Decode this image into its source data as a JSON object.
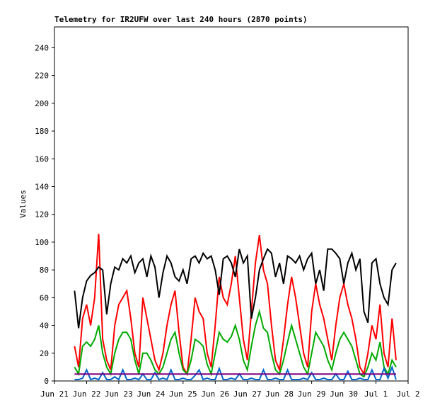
{
  "chart_data": {
    "type": "line",
    "title": "Telemetry for IR2UFW over last 240 hours (2870 points)",
    "y_label": "Values",
    "xlim": [
      0,
      11
    ],
    "xticks": [
      {
        "value": 0,
        "label": "Jun 21"
      },
      {
        "value": 1,
        "label": "Jun 22"
      },
      {
        "value": 2,
        "label": "Jun 23"
      },
      {
        "value": 3,
        "label": "Jun 24"
      },
      {
        "value": 4,
        "label": "Jun 25"
      },
      {
        "value": 5,
        "label": "Jun 26"
      },
      {
        "value": 6,
        "label": "Jun 27"
      },
      {
        "value": 7,
        "label": "Jun 28"
      },
      {
        "value": 8,
        "label": "Jun 29"
      },
      {
        "value": 9,
        "label": "Jun 30"
      },
      {
        "value": 10,
        "label": "Jul 1"
      },
      {
        "value": 11,
        "label": "Jul 2"
      }
    ],
    "ylim": [
      0,
      255
    ],
    "yticks": [
      0,
      20,
      40,
      60,
      80,
      100,
      120,
      140,
      160,
      180,
      200,
      220,
      240
    ],
    "x": [
      0.625,
      0.75,
      0.875,
      1,
      1.125,
      1.25,
      1.375,
      1.5,
      1.625,
      1.75,
      1.875,
      2,
      2.125,
      2.25,
      2.375,
      2.5,
      2.625,
      2.75,
      2.875,
      3,
      3.125,
      3.25,
      3.375,
      3.5,
      3.625,
      3.75,
      3.875,
      4,
      4.125,
      4.25,
      4.375,
      4.5,
      4.625,
      4.75,
      4.875,
      5,
      5.125,
      5.25,
      5.375,
      5.5,
      5.625,
      5.75,
      5.875,
      6,
      6.125,
      6.25,
      6.375,
      6.5,
      6.625,
      6.75,
      6.875,
      7,
      7.125,
      7.25,
      7.375,
      7.5,
      7.625,
      7.75,
      7.875,
      8,
      8.125,
      8.25,
      8.375,
      8.5,
      8.625,
      8.75,
      8.875,
      9,
      9.125,
      9.25,
      9.375,
      9.5,
      9.625,
      9.75,
      9.875,
      10,
      10.125,
      10.25,
      10.375,
      10.5,
      10.625
    ],
    "series": [
      {
        "color": "#ff0000",
        "values": [
          25,
          10,
          45,
          55,
          40,
          60,
          106,
          30,
          15,
          8,
          40,
          55,
          60,
          65,
          45,
          20,
          10,
          60,
          45,
          30,
          15,
          8,
          20,
          40,
          55,
          65,
          35,
          10,
          5,
          30,
          60,
          50,
          45,
          20,
          10,
          40,
          75,
          60,
          55,
          70,
          90,
          60,
          30,
          15,
          50,
          85,
          105,
          80,
          70,
          40,
          15,
          8,
          30,
          55,
          75,
          60,
          40,
          20,
          10,
          50,
          70,
          55,
          45,
          30,
          15,
          40,
          60,
          70,
          55,
          45,
          30,
          10,
          5,
          20,
          40,
          30,
          55,
          20,
          10,
          45,
          15
        ]
      },
      {
        "color": "#00aa00",
        "values": [
          10,
          5,
          25,
          28,
          25,
          30,
          40,
          20,
          10,
          5,
          20,
          30,
          35,
          35,
          30,
          15,
          5,
          20,
          20,
          15,
          8,
          5,
          10,
          20,
          30,
          35,
          20,
          8,
          5,
          15,
          30,
          28,
          25,
          12,
          5,
          20,
          35,
          30,
          28,
          32,
          40,
          30,
          15,
          8,
          25,
          40,
          50,
          38,
          35,
          20,
          8,
          5,
          15,
          28,
          40,
          30,
          20,
          10,
          5,
          20,
          35,
          30,
          25,
          15,
          8,
          20,
          30,
          35,
          30,
          25,
          15,
          5,
          3,
          10,
          20,
          15,
          28,
          10,
          5,
          15,
          10
        ]
      },
      {
        "color": "#000000",
        "values": [
          65,
          38,
          60,
          72,
          76,
          78,
          82,
          80,
          48,
          70,
          82,
          80,
          88,
          85,
          90,
          78,
          85,
          88,
          75,
          90,
          82,
          60,
          78,
          90,
          85,
          75,
          72,
          80,
          70,
          88,
          90,
          85,
          92,
          88,
          90,
          80,
          62,
          88,
          90,
          85,
          75,
          95,
          85,
          90,
          45,
          60,
          80,
          88,
          95,
          92,
          75,
          85,
          70,
          90,
          88,
          85,
          90,
          80,
          88,
          92,
          70,
          80,
          65,
          95,
          95,
          92,
          88,
          70,
          85,
          92,
          80,
          88,
          50,
          42,
          85,
          88,
          70,
          60,
          55,
          80,
          85
        ]
      },
      {
        "color": "#0066cc",
        "values": [
          1,
          1,
          2,
          8,
          1,
          2,
          1,
          6,
          1,
          1,
          3,
          1,
          8,
          1,
          1,
          2,
          1,
          5,
          1,
          1,
          6,
          1,
          2,
          1,
          8,
          1,
          1,
          2,
          1,
          1,
          4,
          8,
          1,
          2,
          1,
          1,
          9,
          1,
          1,
          2,
          1,
          5,
          1,
          1,
          2,
          1,
          1,
          8,
          1,
          1,
          2,
          1,
          1,
          8,
          1,
          1,
          1,
          2,
          1,
          6,
          1,
          1,
          2,
          1,
          1,
          5,
          1,
          1,
          7,
          1,
          1,
          2,
          1,
          1,
          8,
          1,
          1,
          9,
          2,
          10,
          1
        ]
      },
      {
        "color": "#800080",
        "values": [
          5,
          5,
          5,
          5,
          5,
          5,
          5,
          5,
          5,
          5,
          5,
          5,
          5,
          5,
          5,
          5,
          5,
          5,
          5,
          5,
          5,
          5,
          5,
          5,
          5,
          5,
          5,
          5,
          5,
          5,
          5,
          5,
          5,
          5,
          5,
          5,
          5,
          5,
          5,
          5,
          5,
          5,
          5,
          5,
          5,
          5,
          5,
          5,
          5,
          5,
          5,
          5,
          5,
          5,
          5,
          5,
          5,
          5,
          5,
          5,
          5,
          5,
          5,
          5,
          5,
          5,
          5,
          5,
          5,
          5,
          5,
          5,
          5,
          5,
          5,
          5,
          5,
          5,
          5,
          5,
          5
        ]
      }
    ]
  }
}
